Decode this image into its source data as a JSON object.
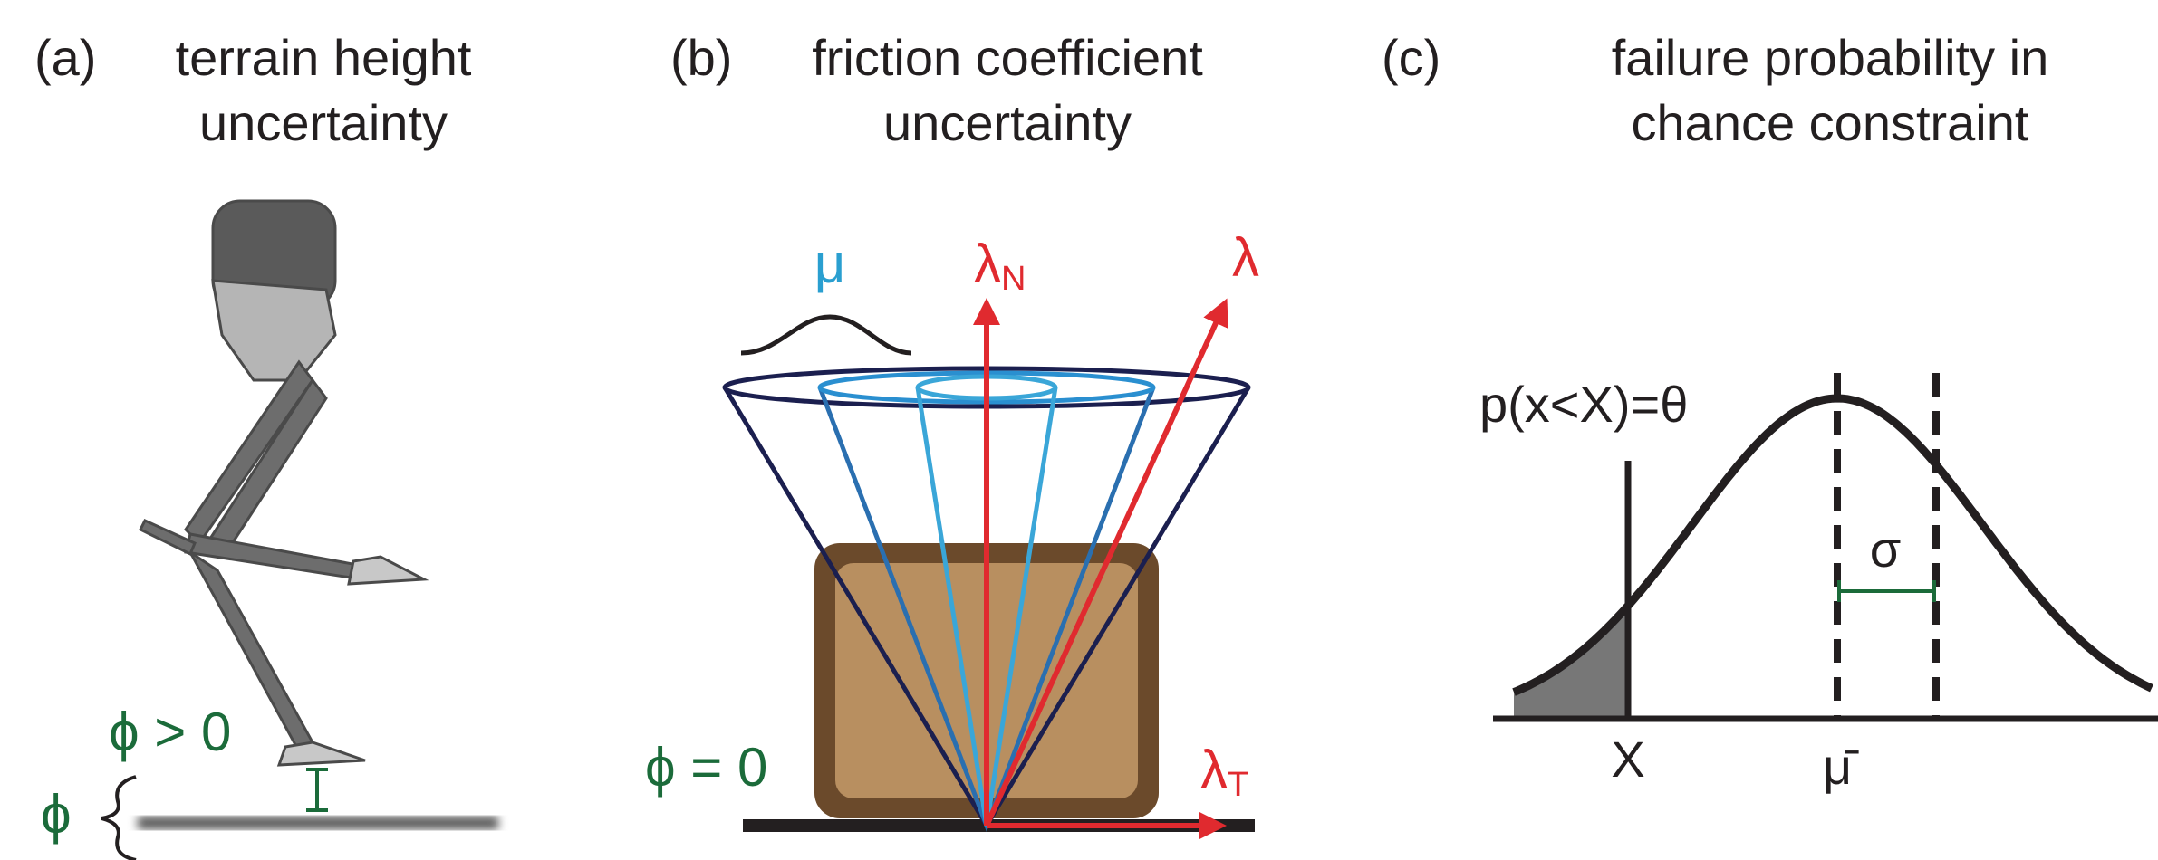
{
  "panels": [
    {
      "tag": "(a)",
      "title": [
        "terrain height",
        "uncertainty"
      ],
      "labels": {
        "phi_pos": "ϕ > 0",
        "phi": "ϕ"
      }
    },
    {
      "tag": "(b)",
      "title": [
        "friction coefficient",
        "uncertainty"
      ],
      "labels": {
        "mu": "μ",
        "lambda_n": "λ",
        "lambda_n_sub": "N",
        "lambda": "λ",
        "lambda_t": "λ",
        "lambda_t_sub": "T",
        "phi_zero": "ϕ = 0"
      }
    },
    {
      "tag": "(c)",
      "title": [
        "failure probability in",
        "chance constraint"
      ],
      "labels": {
        "prob": "p(x<X)=θ",
        "sigma": "σ",
        "x": "X",
        "mu_bar": "μ̄"
      }
    }
  ]
}
